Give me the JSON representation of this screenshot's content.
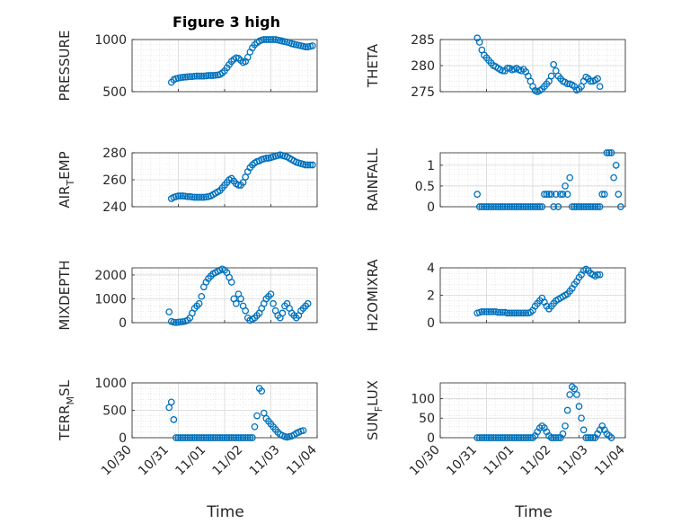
{
  "figure": {
    "title": "Figure 3 high",
    "marker_color": "#0072BD",
    "grid_color": "#d9d9d9",
    "axis_color": "#262626"
  },
  "chart_data": [
    {
      "type": "scatter",
      "ylabel": "PRESSURE",
      "ylim": [
        500,
        1000
      ],
      "yticks": [
        "500",
        "1000"
      ],
      "ytick_values": [
        500,
        1000
      ],
      "show_xticks": false,
      "series": [
        {
          "x": [
            0.85,
            0.9,
            0.95,
            1.0,
            1.05,
            1.1,
            1.15,
            1.2,
            1.25,
            1.3,
            1.35,
            1.4,
            1.45,
            1.5,
            1.55,
            1.6,
            1.65,
            1.7,
            1.75,
            1.8,
            1.85,
            1.9,
            1.95,
            2.0,
            2.05,
            2.1,
            2.15,
            2.2,
            2.25,
            2.3,
            2.35,
            2.4,
            2.45,
            2.5,
            2.55,
            2.6,
            2.65,
            2.7,
            2.75,
            2.8,
            2.85,
            2.9,
            2.95,
            3.0,
            3.05,
            3.1,
            3.15,
            3.2,
            3.25,
            3.3,
            3.35,
            3.4,
            3.45,
            3.5,
            3.55,
            3.6,
            3.65,
            3.7,
            3.75,
            3.8,
            3.85,
            3.9
          ],
          "y": [
            590,
            615,
            625,
            630,
            635,
            638,
            640,
            642,
            645,
            645,
            648,
            650,
            650,
            650,
            650,
            652,
            655,
            655,
            655,
            658,
            660,
            665,
            680,
            700,
            730,
            760,
            790,
            810,
            825,
            820,
            800,
            780,
            790,
            830,
            880,
            920,
            950,
            970,
            985,
            995,
            1000,
            1000,
            1000,
            1000,
            1000,
            1000,
            995,
            990,
            985,
            980,
            975,
            970,
            960,
            955,
            950,
            945,
            940,
            935,
            930,
            930,
            935,
            940
          ]
        }
      ]
    },
    {
      "type": "scatter",
      "ylabel": "THETA",
      "ylim": [
        275,
        285
      ],
      "yticks": [
        "275",
        "280",
        "285"
      ],
      "ytick_values": [
        275,
        280,
        285
      ],
      "show_xticks": false,
      "series": [
        {
          "x": [
            0.8,
            0.85,
            0.9,
            0.95,
            1.0,
            1.05,
            1.1,
            1.15,
            1.2,
            1.25,
            1.3,
            1.35,
            1.4,
            1.45,
            1.5,
            1.55,
            1.6,
            1.65,
            1.7,
            1.75,
            1.8,
            1.85,
            1.9,
            1.95,
            2.0,
            2.05,
            2.1,
            2.15,
            2.2,
            2.25,
            2.3,
            2.35,
            2.4,
            2.45,
            2.5,
            2.55,
            2.6,
            2.65,
            2.7,
            2.75,
            2.8,
            2.85,
            2.9,
            2.95,
            3.0,
            3.05,
            3.1,
            3.15,
            3.2,
            3.25,
            3.3,
            3.35,
            3.4,
            3.45
          ],
          "y": [
            285.3,
            284.5,
            283,
            282,
            281.5,
            281,
            280.5,
            280,
            279.8,
            279.5,
            279.2,
            279,
            279,
            279.5,
            279.5,
            279.2,
            279.3,
            279.5,
            279.2,
            279,
            279.3,
            278.8,
            278,
            277,
            276,
            275.2,
            275,
            275.2,
            275.5,
            276,
            276.5,
            277,
            278,
            280.2,
            279,
            278,
            277.5,
            277,
            276.8,
            276.5,
            276.5,
            276.3,
            276,
            275.3,
            275.5,
            276,
            277,
            277.8,
            277.5,
            277,
            277,
            277.2,
            277.5,
            276
          ]
        }
      ]
    },
    {
      "type": "scatter",
      "ylabel": "AIR_TEMP",
      "ylim": [
        240,
        280
      ],
      "yticks": [
        "240",
        "260",
        "280"
      ],
      "ytick_values": [
        240,
        260,
        280
      ],
      "show_xticks": false,
      "series": [
        {
          "x": [
            0.85,
            0.9,
            0.95,
            1.0,
            1.05,
            1.1,
            1.15,
            1.2,
            1.25,
            1.3,
            1.35,
            1.4,
            1.45,
            1.5,
            1.55,
            1.6,
            1.65,
            1.7,
            1.75,
            1.8,
            1.85,
            1.9,
            1.95,
            2.0,
            2.05,
            2.1,
            2.15,
            2.2,
            2.25,
            2.3,
            2.35,
            2.4,
            2.45,
            2.5,
            2.55,
            2.6,
            2.65,
            2.7,
            2.75,
            2.8,
            2.85,
            2.9,
            2.95,
            3.0,
            3.05,
            3.1,
            3.15,
            3.2,
            3.25,
            3.3,
            3.35,
            3.4,
            3.45,
            3.5,
            3.55,
            3.6,
            3.65,
            3.7,
            3.75,
            3.8,
            3.85,
            3.9
          ],
          "y": [
            246,
            247,
            247.5,
            248,
            248,
            248,
            247.8,
            247.5,
            247.5,
            247.2,
            247,
            247,
            247,
            247,
            247,
            247.2,
            247.5,
            248,
            249,
            250,
            251,
            252,
            254,
            256,
            258,
            260,
            261,
            259,
            257,
            256,
            256,
            258,
            262,
            266,
            269,
            271,
            272.5,
            273.5,
            274,
            275,
            275.5,
            276,
            276,
            276.5,
            277,
            277.5,
            278,
            278.5,
            278,
            277.5,
            277,
            276,
            275,
            274,
            273,
            272.5,
            272,
            271.5,
            271,
            271,
            271,
            271
          ]
        }
      ]
    },
    {
      "type": "scatter",
      "ylabel": "RAINFALL",
      "ylim": [
        0,
        1.3
      ],
      "yticks": [
        "0",
        "0.5",
        "1"
      ],
      "ytick_values": [
        0,
        0.5,
        1
      ],
      "show_xticks": false,
      "series": [
        {
          "x": [
            0.8,
            0.85,
            0.9,
            0.95,
            1.0,
            1.05,
            1.1,
            1.15,
            1.2,
            1.25,
            1.3,
            1.35,
            1.4,
            1.45,
            1.5,
            1.55,
            1.6,
            1.65,
            1.7,
            1.75,
            1.8,
            1.85,
            1.9,
            1.95,
            2.0,
            2.05,
            2.1,
            2.15,
            2.2,
            2.25,
            2.3,
            2.35,
            2.4,
            2.45,
            2.5,
            2.55,
            2.6,
            2.65,
            2.7,
            2.75,
            2.8,
            2.85,
            2.9,
            2.95,
            3.0,
            3.05,
            3.1,
            3.15,
            3.2,
            3.25,
            3.3,
            3.35,
            3.4,
            3.45,
            3.5,
            3.55,
            3.6,
            3.65,
            3.7,
            3.75,
            3.8,
            3.85,
            3.9
          ],
          "y": [
            0.3,
            0,
            0,
            0,
            0,
            0,
            0,
            0,
            0,
            0,
            0,
            0,
            0,
            0,
            0,
            0,
            0,
            0,
            0,
            0,
            0,
            0,
            0,
            0,
            0,
            0,
            0,
            0,
            0,
            0.3,
            0.3,
            0.3,
            0.3,
            0,
            0.3,
            0,
            0.3,
            0.3,
            0.5,
            0.3,
            0.7,
            0,
            0,
            0,
            0,
            0,
            0,
            0,
            0,
            0,
            0,
            0,
            0,
            0,
            0.3,
            0.3,
            1.3,
            1.3,
            1.3,
            0.7,
            1.0,
            0.3,
            0
          ]
        }
      ]
    },
    {
      "type": "scatter",
      "ylabel": "MIXDEPTH",
      "ylim": [
        0,
        2300
      ],
      "yticks": [
        "0",
        "1000",
        "2000"
      ],
      "ytick_values": [
        0,
        1000,
        2000
      ],
      "show_xticks": false,
      "series": [
        {
          "x": [
            0.8,
            0.85,
            0.9,
            0.95,
            1.0,
            1.05,
            1.1,
            1.15,
            1.2,
            1.25,
            1.3,
            1.35,
            1.4,
            1.45,
            1.5,
            1.55,
            1.6,
            1.65,
            1.7,
            1.75,
            1.8,
            1.85,
            1.9,
            1.95,
            2.0,
            2.05,
            2.1,
            2.15,
            2.2,
            2.25,
            2.3,
            2.35,
            2.4,
            2.45,
            2.5,
            2.55,
            2.6,
            2.65,
            2.7,
            2.75,
            2.8,
            2.85,
            2.9,
            2.95,
            3.0,
            3.05,
            3.1,
            3.15,
            3.2,
            3.25,
            3.3,
            3.35,
            3.4,
            3.45,
            3.5,
            3.55,
            3.6,
            3.65,
            3.7,
            3.75,
            3.8
          ],
          "y": [
            450,
            50,
            20,
            10,
            20,
            30,
            40,
            60,
            100,
            200,
            400,
            600,
            700,
            800,
            1100,
            1500,
            1700,
            1850,
            1950,
            2050,
            2100,
            2150,
            2200,
            2250,
            2200,
            2100,
            1900,
            1700,
            1000,
            800,
            1200,
            1000,
            700,
            500,
            200,
            100,
            150,
            200,
            300,
            400,
            600,
            800,
            1000,
            1100,
            1200,
            800,
            500,
            300,
            200,
            400,
            700,
            800,
            600,
            400,
            300,
            200,
            300,
            500,
            600,
            700,
            800
          ]
        }
      ]
    },
    {
      "type": "scatter",
      "ylabel": "H2OMIXRA",
      "ylim": [
        0,
        4
      ],
      "yticks": [
        "0",
        "2",
        "4"
      ],
      "ytick_values": [
        0,
        2,
        4
      ],
      "show_xticks": false,
      "series": [
        {
          "x": [
            0.8,
            0.85,
            0.9,
            0.95,
            1.0,
            1.05,
            1.1,
            1.15,
            1.2,
            1.25,
            1.3,
            1.35,
            1.4,
            1.45,
            1.5,
            1.55,
            1.6,
            1.65,
            1.7,
            1.75,
            1.8,
            1.85,
            1.9,
            1.95,
            2.0,
            2.05,
            2.1,
            2.15,
            2.2,
            2.25,
            2.3,
            2.35,
            2.4,
            2.45,
            2.5,
            2.55,
            2.6,
            2.65,
            2.7,
            2.75,
            2.8,
            2.85,
            2.9,
            2.95,
            3.0,
            3.05,
            3.1,
            3.15,
            3.2,
            3.25,
            3.3,
            3.35,
            3.4,
            3.45
          ],
          "y": [
            0.7,
            0.75,
            0.8,
            0.8,
            0.8,
            0.8,
            0.8,
            0.8,
            0.8,
            0.75,
            0.75,
            0.75,
            0.75,
            0.7,
            0.7,
            0.7,
            0.7,
            0.7,
            0.7,
            0.7,
            0.7,
            0.7,
            0.7,
            0.75,
            0.9,
            1.2,
            1.4,
            1.6,
            1.8,
            1.5,
            1.2,
            1.0,
            1.2,
            1.4,
            1.6,
            1.7,
            1.8,
            1.9,
            2.0,
            2.1,
            2.3,
            2.5,
            2.8,
            3.0,
            3.3,
            3.5,
            3.8,
            3.9,
            3.8,
            3.6,
            3.5,
            3.4,
            3.5,
            3.5
          ]
        }
      ]
    },
    {
      "type": "scatter",
      "ylabel": "TERR_MSL",
      "ylim": [
        0,
        1000
      ],
      "yticks": [
        "0",
        "500",
        "1000"
      ],
      "ytick_values": [
        0,
        500,
        1000
      ],
      "show_xticks": false,
      "series": [
        {
          "x": [
            0.8,
            0.85,
            0.9,
            0.95,
            1.0,
            1.05,
            1.1,
            1.15,
            1.2,
            1.25,
            1.3,
            1.35,
            1.4,
            1.45,
            1.5,
            1.55,
            1.6,
            1.65,
            1.7,
            1.75,
            1.8,
            1.85,
            1.9,
            1.95,
            2.0,
            2.05,
            2.1,
            2.15,
            2.2,
            2.25,
            2.3,
            2.35,
            2.4,
            2.45,
            2.5,
            2.55,
            2.6,
            2.65,
            2.7,
            2.75,
            2.8,
            2.85,
            2.9,
            2.95,
            3.0,
            3.05,
            3.1,
            3.15,
            3.2,
            3.25,
            3.3,
            3.35,
            3.4,
            3.45,
            3.5,
            3.55,
            3.6,
            3.65,
            3.7
          ],
          "y": [
            550,
            650,
            330,
            0,
            0,
            0,
            0,
            0,
            0,
            0,
            0,
            0,
            0,
            0,
            0,
            0,
            0,
            0,
            0,
            0,
            0,
            0,
            0,
            0,
            0,
            0,
            0,
            0,
            0,
            0,
            0,
            0,
            0,
            0,
            0,
            0,
            0,
            200,
            400,
            900,
            850,
            450,
            350,
            300,
            250,
            200,
            150,
            100,
            60,
            40,
            20,
            10,
            20,
            30,
            50,
            80,
            100,
            120,
            130
          ]
        }
      ]
    },
    {
      "type": "scatter",
      "ylabel": "SUN_FLUX",
      "ylim": [
        0,
        140
      ],
      "yticks": [
        "0",
        "50",
        "100"
      ],
      "ytick_values": [
        0,
        50,
        100
      ],
      "show_xticks": false,
      "series": [
        {
          "x": [
            0.8,
            0.85,
            0.9,
            0.95,
            1.0,
            1.05,
            1.1,
            1.15,
            1.2,
            1.25,
            1.3,
            1.35,
            1.4,
            1.45,
            1.5,
            1.55,
            1.6,
            1.65,
            1.7,
            1.75,
            1.8,
            1.85,
            1.9,
            1.95,
            2.0,
            2.05,
            2.1,
            2.15,
            2.2,
            2.25,
            2.3,
            2.35,
            2.4,
            2.45,
            2.5,
            2.55,
            2.6,
            2.65,
            2.7,
            2.75,
            2.8,
            2.85,
            2.9,
            2.95,
            3.0,
            3.05,
            3.1,
            3.15,
            3.2,
            3.25,
            3.3,
            3.35,
            3.4,
            3.45,
            3.5,
            3.55,
            3.6,
            3.65,
            3.7
          ],
          "y": [
            0,
            0,
            0,
            0,
            0,
            0,
            0,
            0,
            0,
            0,
            0,
            0,
            0,
            0,
            0,
            0,
            0,
            0,
            0,
            0,
            0,
            0,
            0,
            0,
            0,
            5,
            15,
            25,
            30,
            25,
            15,
            5,
            0,
            0,
            0,
            0,
            0,
            10,
            30,
            70,
            110,
            130,
            125,
            110,
            80,
            50,
            20,
            0,
            0,
            0,
            0,
            0,
            10,
            20,
            30,
            20,
            10,
            5,
            0
          ]
        }
      ]
    }
  ],
  "x_axis": {
    "label": "Time",
    "xlim": [
      0,
      4
    ],
    "tick_values": [
      0,
      1,
      2,
      3,
      4
    ],
    "tick_labels": [
      "10/30",
      "10/31",
      "11/01",
      "11/02",
      "11/03",
      "11/04"
    ],
    "label_tick_values": [
      0,
      0.8,
      1.6,
      2.4,
      3.2,
      4.0
    ]
  }
}
